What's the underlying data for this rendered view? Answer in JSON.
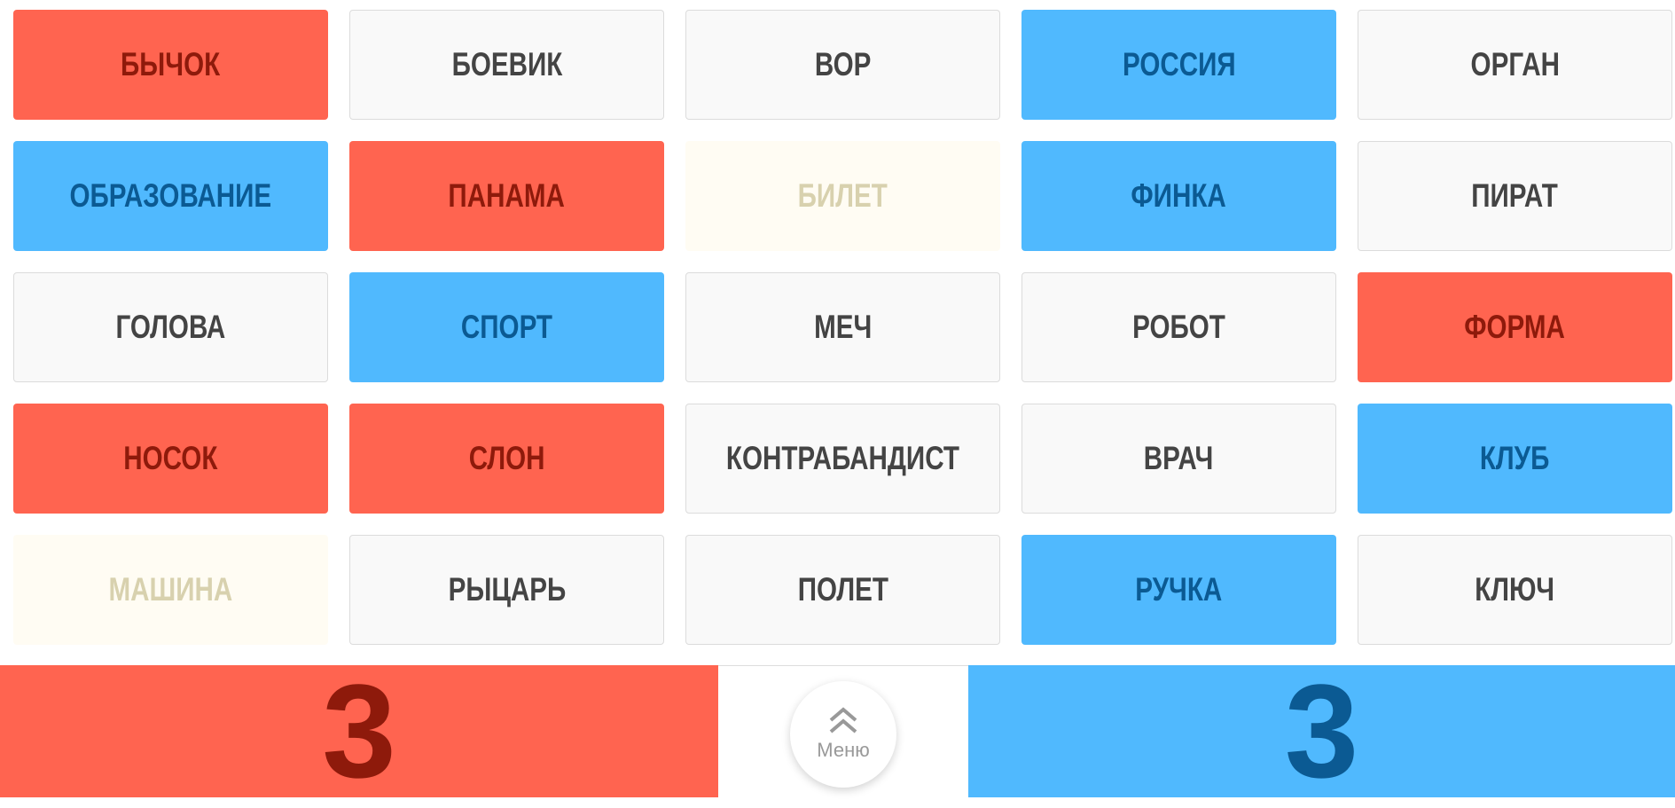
{
  "colors": {
    "red": "#FF6450",
    "blue": "#50B9FE",
    "neutral": "#F9F9F9",
    "assassin": "#FFFCF3"
  },
  "cards": [
    {
      "word": "БЫЧОК",
      "team": "red"
    },
    {
      "word": "БОЕВИК",
      "team": "neutral"
    },
    {
      "word": "ВОР",
      "team": "neutral"
    },
    {
      "word": "РОССИЯ",
      "team": "blue"
    },
    {
      "word": "ОРГАН",
      "team": "neutral"
    },
    {
      "word": "ОБРАЗОВАНИЕ",
      "team": "blue"
    },
    {
      "word": "ПАНАМА",
      "team": "red"
    },
    {
      "word": "БИЛЕТ",
      "team": "assassin"
    },
    {
      "word": "ФИНКА",
      "team": "blue"
    },
    {
      "word": "ПИРАТ",
      "team": "neutral"
    },
    {
      "word": "ГОЛОВА",
      "team": "neutral"
    },
    {
      "word": "СПОРТ",
      "team": "blue"
    },
    {
      "word": "МЕЧ",
      "team": "neutral"
    },
    {
      "word": "РОБОТ",
      "team": "neutral"
    },
    {
      "word": "ФОРМА",
      "team": "red"
    },
    {
      "word": "НОСОК",
      "team": "red"
    },
    {
      "word": "СЛОН",
      "team": "red"
    },
    {
      "word": "КОНТРАБАНДИСТ",
      "team": "neutral"
    },
    {
      "word": "ВРАЧ",
      "team": "neutral"
    },
    {
      "word": "КЛУБ",
      "team": "blue"
    },
    {
      "word": "МАШИНА",
      "team": "assassin"
    },
    {
      "word": "РЫЦАРЬ",
      "team": "neutral"
    },
    {
      "word": "ПОЛЕТ",
      "team": "neutral"
    },
    {
      "word": "РУЧКА",
      "team": "blue"
    },
    {
      "word": "КЛЮЧ",
      "team": "neutral"
    }
  ],
  "score": {
    "red": "3",
    "blue": "3"
  },
  "menu": {
    "label": "Меню",
    "icon": "double-chevron-up-icon"
  }
}
